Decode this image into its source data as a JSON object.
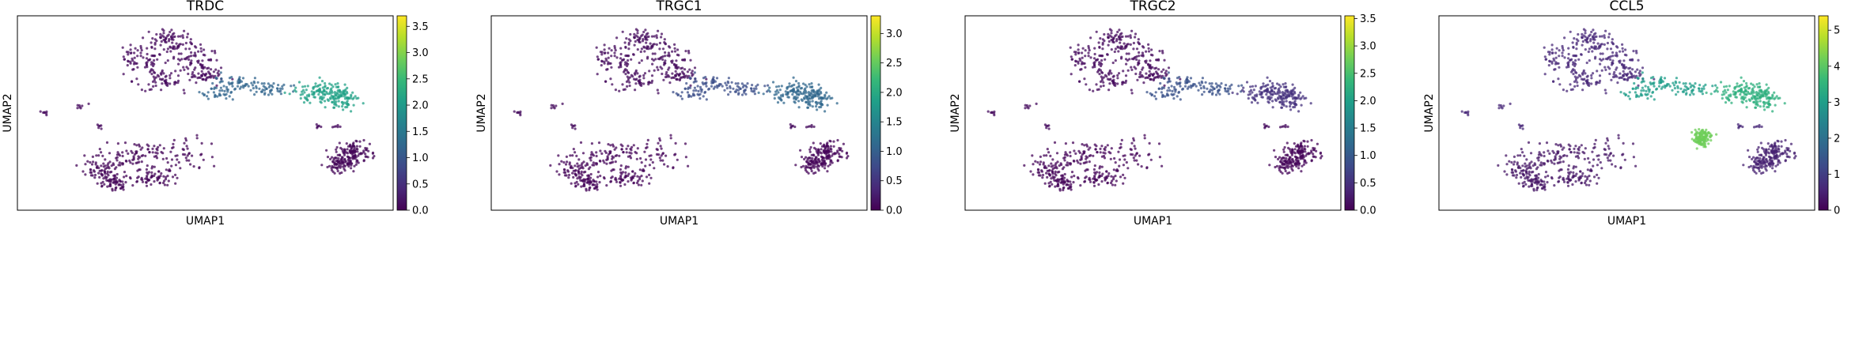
{
  "chart_data": [
    {
      "type": "scatter",
      "title": "TRDC",
      "xlabel": "UMAP1",
      "ylabel": "UMAP2",
      "colormap": "viridis",
      "colorbar": {
        "range": [
          0,
          3.7
        ],
        "ticks": [
          0.0,
          0.5,
          1.0,
          1.5,
          2.0,
          2.5,
          3.0,
          3.5
        ],
        "tick_labels": [
          "0.0",
          "0.5",
          "1.0",
          "1.5",
          "2.0",
          "2.5",
          "3.0",
          "3.5"
        ]
      },
      "regions": [
        {
          "name": "upper-left-lobe",
          "cells": "majority",
          "expression_level": 0.1
        },
        {
          "name": "upper-stream",
          "cells": "moderate",
          "expression_level": 1.2
        },
        {
          "name": "upper-right-cluster",
          "cells": "dense",
          "expression_level": 2.1
        },
        {
          "name": "lower-main-cluster",
          "cells": "majority",
          "expression_level": 0.05
        },
        {
          "name": "lower-right-cluster",
          "cells": "dense",
          "expression_level": 0.05
        },
        {
          "name": "small-islands",
          "cells": "few",
          "expression_level": 0.1
        }
      ]
    },
    {
      "type": "scatter",
      "title": "TRGC1",
      "xlabel": "UMAP1",
      "ylabel": "UMAP2",
      "colormap": "viridis",
      "colorbar": {
        "range": [
          0,
          3.3
        ],
        "ticks": [
          0.0,
          0.5,
          1.0,
          1.5,
          2.0,
          2.5,
          3.0
        ],
        "tick_labels": [
          "0.0",
          "0.5",
          "1.0",
          "1.5",
          "2.0",
          "2.5",
          "3.0"
        ]
      },
      "regions": [
        {
          "name": "upper-left-lobe",
          "cells": "majority",
          "expression_level": 0.1
        },
        {
          "name": "upper-stream",
          "cells": "moderate",
          "expression_level": 0.8
        },
        {
          "name": "upper-right-cluster",
          "cells": "dense",
          "expression_level": 1.1
        },
        {
          "name": "lower-main-cluster",
          "cells": "majority",
          "expression_level": 0.05
        },
        {
          "name": "lower-right-cluster",
          "cells": "dense",
          "expression_level": 0.05
        },
        {
          "name": "small-islands",
          "cells": "few",
          "expression_level": 0.1
        }
      ]
    },
    {
      "type": "scatter",
      "title": "TRGC2",
      "xlabel": "UMAP1",
      "ylabel": "UMAP2",
      "colormap": "viridis",
      "colorbar": {
        "range": [
          0,
          3.55
        ],
        "ticks": [
          0.0,
          0.5,
          1.0,
          1.5,
          2.0,
          2.5,
          3.0,
          3.5
        ],
        "tick_labels": [
          "0.0",
          "0.5",
          "1.0",
          "1.5",
          "2.0",
          "2.5",
          "3.0",
          "3.5"
        ]
      },
      "regions": [
        {
          "name": "upper-left-lobe",
          "cells": "majority",
          "expression_level": 0.1
        },
        {
          "name": "upper-stream",
          "cells": "moderate",
          "expression_level": 0.9
        },
        {
          "name": "upper-right-cluster",
          "cells": "dense",
          "expression_level": 0.5
        },
        {
          "name": "lower-main-cluster",
          "cells": "majority",
          "expression_level": 0.05
        },
        {
          "name": "lower-right-cluster",
          "cells": "dense",
          "expression_level": 0.05
        },
        {
          "name": "small-islands",
          "cells": "few",
          "expression_level": 0.1
        }
      ]
    },
    {
      "type": "scatter",
      "title": "CCL5",
      "xlabel": "UMAP1",
      "ylabel": "UMAP2",
      "colormap": "viridis",
      "colorbar": {
        "range": [
          0,
          5.4
        ],
        "ticks": [
          0,
          1,
          2,
          3,
          4,
          5
        ],
        "tick_labels": [
          "0",
          "1",
          "2",
          "3",
          "4",
          "5"
        ]
      },
      "regions": [
        {
          "name": "upper-left-lobe",
          "cells": "majority",
          "expression_level": 0.6
        },
        {
          "name": "upper-stream",
          "cells": "moderate",
          "expression_level": 3.0
        },
        {
          "name": "upper-right-cluster",
          "cells": "dense",
          "expression_level": 3.4
        },
        {
          "name": "lower-main-cluster",
          "cells": "majority",
          "expression_level": 0.3
        },
        {
          "name": "lower-right-cluster",
          "cells": "dense",
          "expression_level": 0.5
        },
        {
          "name": "small-islands",
          "cells": "few",
          "expression_level": 0.6
        },
        {
          "name": "arc-cluster",
          "cells": "moderate",
          "expression_level": 4.2
        }
      ]
    }
  ]
}
